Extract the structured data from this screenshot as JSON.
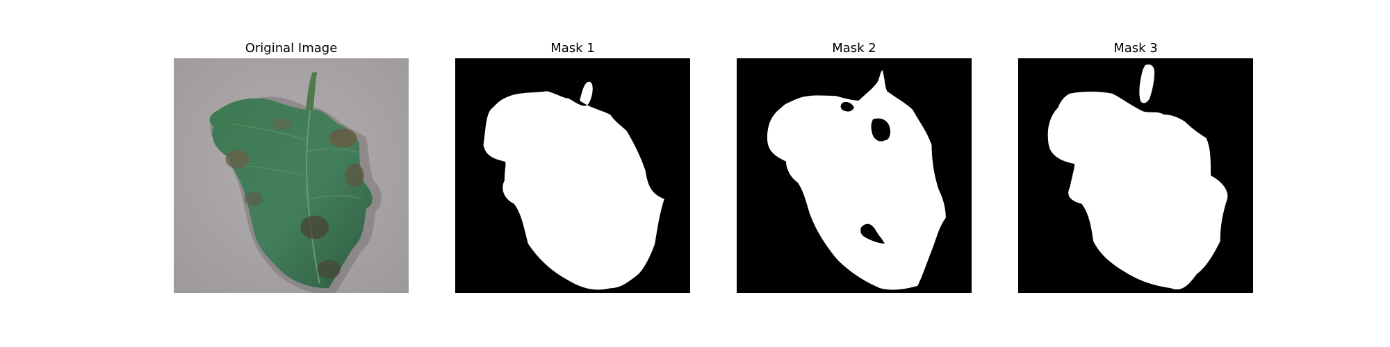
{
  "figure": {
    "panels": [
      {
        "title": "Original Image"
      },
      {
        "title": "Mask 1"
      },
      {
        "title": "Mask 2"
      },
      {
        "title": "Mask 3"
      }
    ]
  },
  "colors": {
    "figure_background": "#ffffff",
    "mask_background": "#000000",
    "mask_foreground": "#ffffff",
    "photo_background": "#a9a6a8",
    "leaf_green": "#3f7a55",
    "leaf_dark": "#2a5238",
    "lesion_brown": "#6a5a44"
  }
}
